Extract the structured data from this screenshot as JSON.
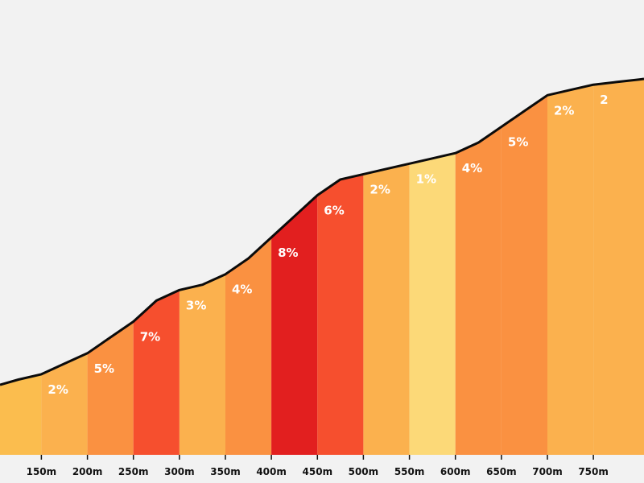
{
  "chart_data": {
    "type": "area",
    "title": "",
    "xlabel": "",
    "ylabel": "",
    "grid": false,
    "xlim": [
      105,
      805
    ],
    "ticks": [
      "150m",
      "200m",
      "250m",
      "300m",
      "350m",
      "400m",
      "450m",
      "500m",
      "550m",
      "600m",
      "650m",
      "700m",
      "750m"
    ],
    "profile": {
      "x": [
        105,
        125,
        150,
        175,
        200,
        225,
        250,
        275,
        300,
        325,
        350,
        375,
        400,
        425,
        450,
        475,
        500,
        525,
        550,
        575,
        600,
        625,
        650,
        675,
        700,
        725,
        750,
        775,
        800,
        805
      ],
      "y": [
        0,
        1,
        2,
        4,
        6,
        9,
        12,
        16,
        18,
        19,
        21,
        24,
        28,
        32,
        36,
        39,
        40,
        41,
        42,
        43,
        44,
        46,
        49,
        52,
        55,
        56,
        57,
        57.5,
        58,
        58.1
      ]
    },
    "segments": [
      {
        "start": 100,
        "end": 150,
        "grade": "",
        "color": "#fbbd4e"
      },
      {
        "start": 150,
        "end": 200,
        "grade": "2%",
        "color": "#fbb14e"
      },
      {
        "start": 200,
        "end": 250,
        "grade": "5%",
        "color": "#fa9141"
      },
      {
        "start": 250,
        "end": 300,
        "grade": "7%",
        "color": "#f64f2e"
      },
      {
        "start": 300,
        "end": 350,
        "grade": "3%",
        "color": "#fbb14e"
      },
      {
        "start": 350,
        "end": 400,
        "grade": "4%",
        "color": "#fa9141"
      },
      {
        "start": 400,
        "end": 450,
        "grade": "8%",
        "color": "#e21f1f"
      },
      {
        "start": 450,
        "end": 500,
        "grade": "6%",
        "color": "#f64f2e"
      },
      {
        "start": 500,
        "end": 550,
        "grade": "2%",
        "color": "#fbb14e"
      },
      {
        "start": 550,
        "end": 600,
        "grade": "1%",
        "color": "#fcd978"
      },
      {
        "start": 600,
        "end": 650,
        "grade": "4%",
        "color": "#fa9141"
      },
      {
        "start": 650,
        "end": 700,
        "grade": "5%",
        "color": "#fa9141"
      },
      {
        "start": 700,
        "end": 750,
        "grade": "2%",
        "color": "#fbb14e"
      },
      {
        "start": 750,
        "end": 810,
        "grade": "2",
        "color": "#fbb14e"
      }
    ],
    "colors": {
      "background": "#f2f2f2",
      "outline": "#0b0b0b",
      "label": "#ffffff",
      "axis_text": "#111111"
    }
  }
}
